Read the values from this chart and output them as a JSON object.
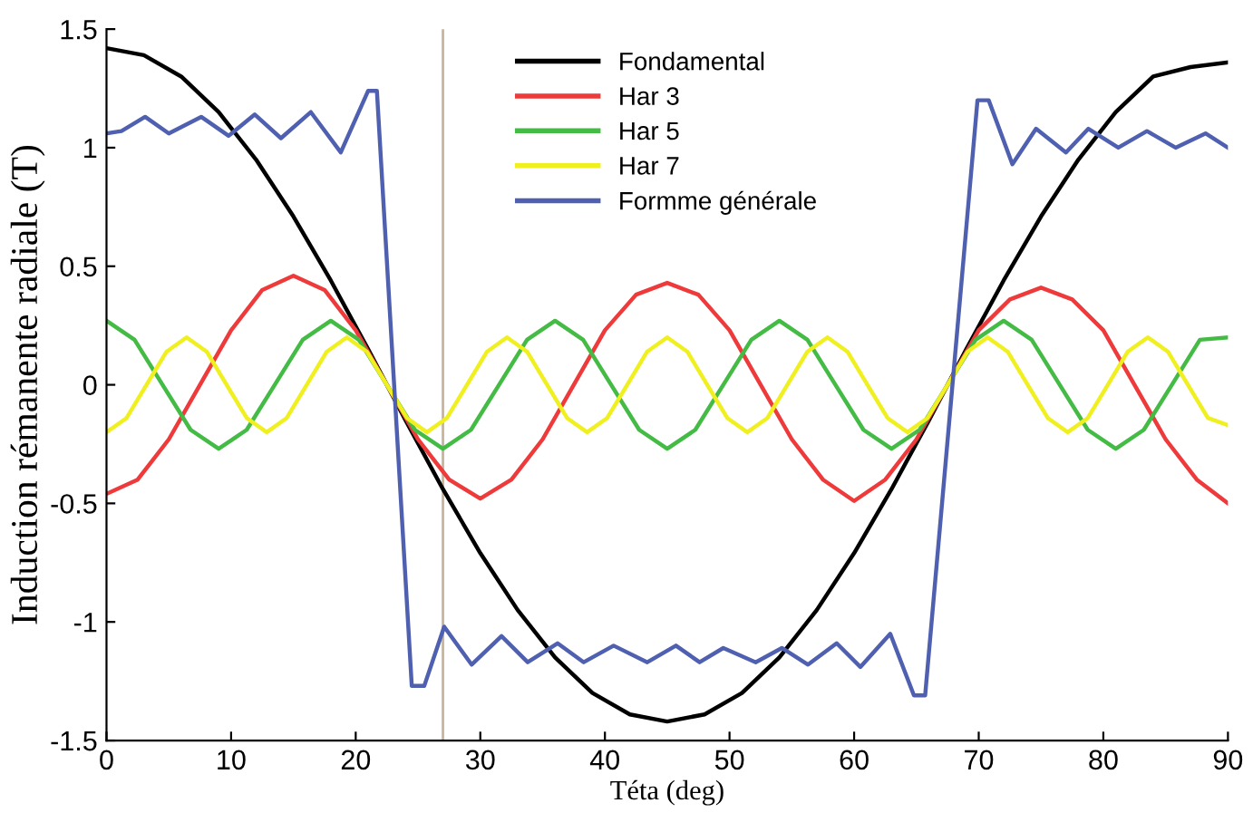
{
  "chart_data": {
    "type": "line",
    "xlabel": "Téta (deg)",
    "ylabel": "Induction rémanente radiale (T)",
    "xlim": [
      0,
      90
    ],
    "xticks": [
      0,
      10,
      20,
      30,
      40,
      50,
      60,
      70,
      80,
      90
    ],
    "ylim": [
      -1.5,
      1.5
    ],
    "yticks": [
      -1.5,
      -1,
      -0.5,
      0,
      0.5,
      1,
      1.5
    ],
    "grid": false,
    "legend": "top",
    "line_style": "solid",
    "marker": "none",
    "ref_lines": [
      {
        "axis": "x",
        "value": 27,
        "color": "#c8b49a"
      }
    ],
    "series": [
      {
        "name": "Fondamental",
        "color": "#000000",
        "x": [
          0,
          3,
          6,
          9,
          12,
          15,
          18,
          21,
          24,
          27,
          30,
          33,
          36,
          39,
          42,
          45,
          48,
          51,
          54,
          57,
          60,
          63,
          66,
          69,
          72,
          75,
          78,
          81,
          84,
          87,
          90
        ],
        "values": [
          1.42,
          1.39,
          1.3,
          1.15,
          0.95,
          0.71,
          0.44,
          0.15,
          -0.15,
          -0.44,
          -0.71,
          -0.95,
          -1.15,
          -1.3,
          -1.39,
          -1.42,
          -1.39,
          -1.3,
          -1.15,
          -0.95,
          -0.71,
          -0.44,
          -0.15,
          0.15,
          0.44,
          0.71,
          0.95,
          1.15,
          1.3,
          1.34,
          1.36
        ]
      },
      {
        "name": "Har 3",
        "color": "#ee3a3a",
        "x": [
          0,
          2.5,
          5,
          7.5,
          10,
          12.5,
          15,
          17.5,
          20,
          22.5,
          25,
          27.5,
          30,
          32.5,
          35,
          37.5,
          40,
          42.5,
          45,
          47.5,
          50,
          52.5,
          55,
          57.5,
          60,
          62.5,
          65,
          67.5,
          70,
          72.5,
          75,
          77.5,
          80,
          82.5,
          85,
          87.5,
          90
        ],
        "values": [
          -0.46,
          -0.4,
          -0.23,
          0,
          0.23,
          0.4,
          0.46,
          0.4,
          0.23,
          0,
          -0.23,
          -0.4,
          -0.48,
          -0.4,
          -0.23,
          0,
          0.23,
          0.38,
          0.43,
          0.38,
          0.23,
          0,
          -0.23,
          -0.4,
          -0.49,
          -0.4,
          -0.23,
          0,
          0.23,
          0.36,
          0.41,
          0.36,
          0.23,
          0,
          -0.23,
          -0.4,
          -0.5
        ]
      },
      {
        "name": "Har 5",
        "color": "#44bb44",
        "x": [
          0,
          2.25,
          4.5,
          6.75,
          9,
          11.25,
          13.5,
          15.75,
          18,
          20.25,
          22.5,
          24.75,
          27,
          29.25,
          31.5,
          33.75,
          36,
          38.25,
          40.5,
          42.75,
          45,
          47.25,
          49.5,
          51.75,
          54,
          56.25,
          58.5,
          60.75,
          63,
          65.25,
          67.5,
          69.75,
          72,
          74.25,
          76.5,
          78.75,
          81,
          83.25,
          85.5,
          87.75,
          90
        ],
        "values": [
          0.27,
          0.19,
          0,
          -0.19,
          -0.27,
          -0.19,
          0,
          0.19,
          0.27,
          0.19,
          0,
          -0.19,
          -0.27,
          -0.19,
          0,
          0.19,
          0.27,
          0.19,
          0,
          -0.19,
          -0.27,
          -0.19,
          0,
          0.19,
          0.27,
          0.19,
          0,
          -0.19,
          -0.27,
          -0.19,
          0,
          0.19,
          0.27,
          0.19,
          0,
          -0.19,
          -0.27,
          -0.19,
          0,
          0.19,
          0.2
        ]
      },
      {
        "name": "Har 7",
        "color": "#f0f020",
        "x": [
          0,
          1.61,
          3.21,
          4.82,
          6.43,
          8.04,
          9.64,
          11.25,
          12.86,
          14.46,
          16.07,
          17.68,
          19.29,
          20.89,
          22.5,
          24.11,
          25.71,
          27.32,
          28.93,
          30.54,
          32.14,
          33.75,
          35.36,
          36.96,
          38.57,
          40.18,
          41.79,
          43.39,
          45,
          46.61,
          48.21,
          49.82,
          51.43,
          53.04,
          54.64,
          56.25,
          57.86,
          59.46,
          61.07,
          62.68,
          64.29,
          65.89,
          67.5,
          69.11,
          70.71,
          72.32,
          73.93,
          75.54,
          77.14,
          78.75,
          80.36,
          81.96,
          83.57,
          85.18,
          86.79,
          88.39,
          90
        ],
        "values": [
          -0.2,
          -0.14,
          0,
          0.14,
          0.2,
          0.14,
          0,
          -0.14,
          -0.2,
          -0.14,
          0,
          0.14,
          0.2,
          0.14,
          0,
          -0.14,
          -0.2,
          -0.14,
          0,
          0.14,
          0.2,
          0.14,
          0,
          -0.14,
          -0.2,
          -0.14,
          0,
          0.14,
          0.2,
          0.14,
          0,
          -0.14,
          -0.2,
          -0.14,
          0,
          0.14,
          0.2,
          0.14,
          0,
          -0.14,
          -0.2,
          -0.14,
          0,
          0.14,
          0.2,
          0.14,
          0,
          -0.14,
          -0.2,
          -0.14,
          0,
          0.14,
          0.2,
          0.14,
          0,
          -0.14,
          -0.17
        ]
      },
      {
        "name": "Formme générale",
        "color": "#5060b0",
        "x": [
          0,
          1.2,
          3.1,
          5,
          7.6,
          9.8,
          11.9,
          14,
          16.4,
          18.8,
          21,
          21.7,
          24.5,
          25.5,
          27.1,
          29.3,
          31.7,
          33.8,
          36.2,
          38.3,
          40.7,
          43.4,
          45.7,
          47.6,
          49.5,
          52.1,
          54.2,
          56.3,
          58.6,
          60.5,
          62.9,
          64.8,
          65.7,
          69.9,
          70.8,
          72.7,
          74.6,
          77,
          78.8,
          81.2,
          83.5,
          85.8,
          88.2,
          90
        ],
        "values": [
          1.06,
          1.07,
          1.13,
          1.06,
          1.13,
          1.05,
          1.14,
          1.04,
          1.15,
          0.98,
          1.24,
          1.24,
          -1.27,
          -1.27,
          -1.02,
          -1.18,
          -1.06,
          -1.17,
          -1.09,
          -1.17,
          -1.1,
          -1.17,
          -1.1,
          -1.17,
          -1.11,
          -1.17,
          -1.11,
          -1.18,
          -1.09,
          -1.19,
          -1.05,
          -1.31,
          -1.31,
          1.2,
          1.2,
          0.93,
          1.08,
          0.98,
          1.08,
          1,
          1.07,
          1,
          1.06,
          1
        ]
      }
    ]
  }
}
